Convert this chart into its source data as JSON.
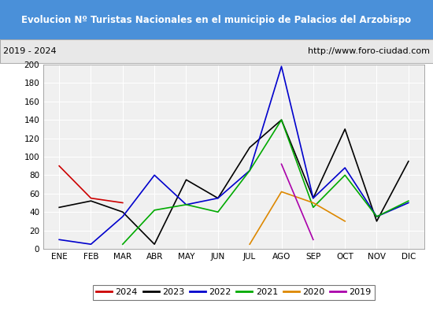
{
  "title": "Evolucion Nº Turistas Nacionales en el municipio de Palacios del Arzobispo",
  "subtitle_left": "2019 - 2024",
  "subtitle_right": "http://www.foro-ciudad.com",
  "months": [
    "ENE",
    "FEB",
    "MAR",
    "ABR",
    "MAY",
    "JUN",
    "JUL",
    "AGO",
    "SEP",
    "OCT",
    "NOV",
    "DIC"
  ],
  "ylim": [
    0,
    200
  ],
  "yticks": [
    0,
    20,
    40,
    60,
    80,
    100,
    120,
    140,
    160,
    180,
    200
  ],
  "series": {
    "2024": {
      "color": "#cc0000",
      "values": [
        90,
        55,
        50,
        null,
        null,
        null,
        null,
        null,
        null,
        null,
        null,
        null
      ]
    },
    "2023": {
      "color": "#000000",
      "values": [
        45,
        52,
        40,
        5,
        75,
        55,
        110,
        140,
        55,
        130,
        30,
        95
      ]
    },
    "2022": {
      "color": "#0000cc",
      "values": [
        10,
        5,
        35,
        80,
        48,
        55,
        85,
        198,
        55,
        88,
        35,
        50
      ]
    },
    "2021": {
      "color": "#00aa00",
      "values": [
        null,
        null,
        5,
        42,
        48,
        40,
        85,
        140,
        45,
        80,
        35,
        52
      ]
    },
    "2020": {
      "color": "#dd8800",
      "values": [
        null,
        null,
        null,
        null,
        null,
        null,
        5,
        62,
        50,
        30,
        null,
        null
      ]
    },
    "2019": {
      "color": "#aa00aa",
      "values": [
        null,
        null,
        null,
        null,
        null,
        null,
        null,
        92,
        10,
        null,
        null,
        null
      ]
    }
  },
  "legend_order": [
    "2024",
    "2023",
    "2022",
    "2021",
    "2020",
    "2019"
  ],
  "title_bg_color": "#4a90d9",
  "title_font_color": "#ffffff",
  "subtitle_bg_color": "#e8e8e8",
  "plot_bg_color": "#f0f0f0",
  "grid_color": "#ffffff"
}
